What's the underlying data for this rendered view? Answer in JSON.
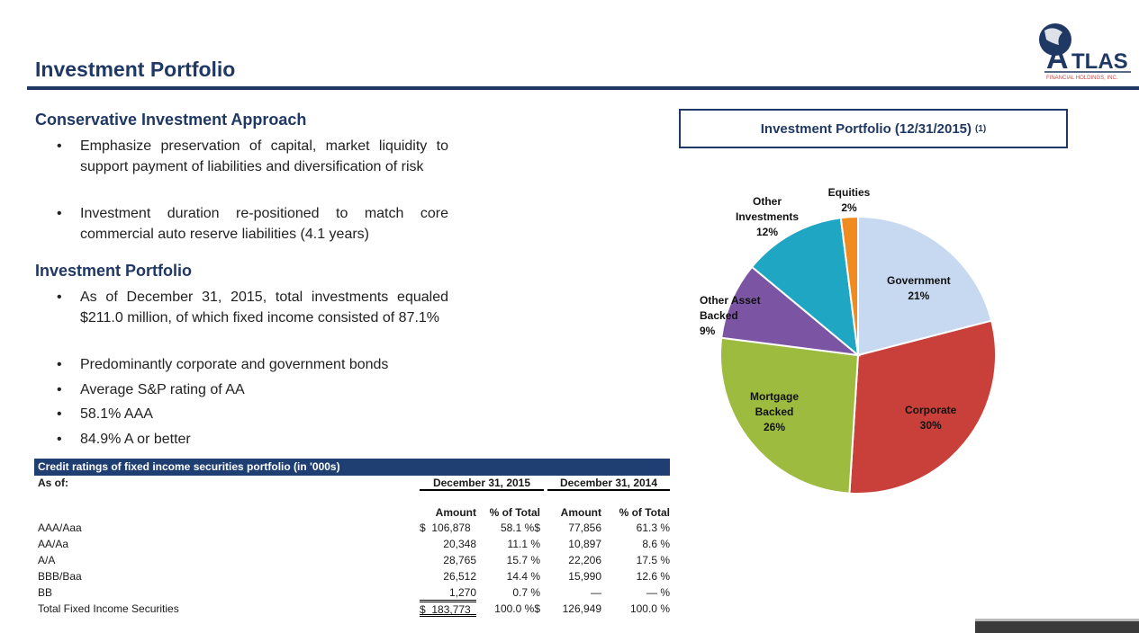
{
  "header": {
    "title": "Investment Portfolio",
    "logo_text": "ATLAS",
    "logo_subtext": "FINANCIAL HOLDINGS, INC."
  },
  "sections": [
    {
      "heading": "Conservative Investment Approach",
      "bullets": [
        "Emphasize preservation of capital, market liquidity to support payment of liabilities and diversification of risk",
        "Investment duration re-positioned to match core commercial auto reserve liabilities (4.1 years)"
      ]
    },
    {
      "heading": "Investment Portfolio",
      "bullets": [
        "As of December 31, 2015, total investments equaled $211.0 million, of which fixed income consisted of 87.1%",
        "Predominantly corporate and government bonds",
        "Average S&P rating of AA",
        "58.1% AAA",
        "84.9% A or better"
      ]
    }
  ],
  "chart_data": {
    "type": "pie",
    "title": "Investment Portfolio (12/31/2015)",
    "title_note": "(1)",
    "slices": [
      {
        "label": "Government",
        "value": 21,
        "display": "21%",
        "color": "#c6d9f0"
      },
      {
        "label": "Corporate",
        "value": 30,
        "display": "30%",
        "color": "#c9403a"
      },
      {
        "label": "Mortgage Backed",
        "value": 26,
        "display": "26%",
        "color": "#9dbb3f"
      },
      {
        "label": "Other Asset Backed",
        "value": 9,
        "display": "9%",
        "color": "#7b55a3"
      },
      {
        "label": "Other Investments",
        "value": 12,
        "display": "12%",
        "color": "#1ea6c2"
      },
      {
        "label": "Equities",
        "value": 2,
        "display": "2%",
        "color": "#f08c1f"
      }
    ]
  },
  "table": {
    "title": "Credit ratings of fixed income securities portfolio (in '000s)",
    "as_of": "As of:",
    "periods": [
      "December 31, 2015",
      "December 31, 2014"
    ],
    "columns": [
      "Amount",
      "% of Total",
      "Amount",
      "% of Total"
    ],
    "rows": [
      {
        "label": "AAA/Aaa",
        "cells": [
          "$  106,878",
          "58.1 %$",
          "77,856",
          "61.3 %"
        ]
      },
      {
        "label": "AA/Aa",
        "cells": [
          "20,348",
          "11.1 %",
          "10,897",
          "8.6 %"
        ]
      },
      {
        "label": "A/A",
        "cells": [
          "28,765",
          "15.7 %",
          "22,206",
          "17.5 %"
        ]
      },
      {
        "label": "BBB/Baa",
        "cells": [
          "26,512",
          "14.4 %",
          "15,990",
          "12.6 %"
        ]
      },
      {
        "label": "BB",
        "cells": [
          "1,270",
          "0.7 %",
          "—",
          "— %"
        ]
      },
      {
        "label": "Total Fixed Income Securities",
        "cells": [
          "$  183,773",
          "100.0 %$",
          "126,949",
          "100.0 %"
        ]
      }
    ]
  }
}
